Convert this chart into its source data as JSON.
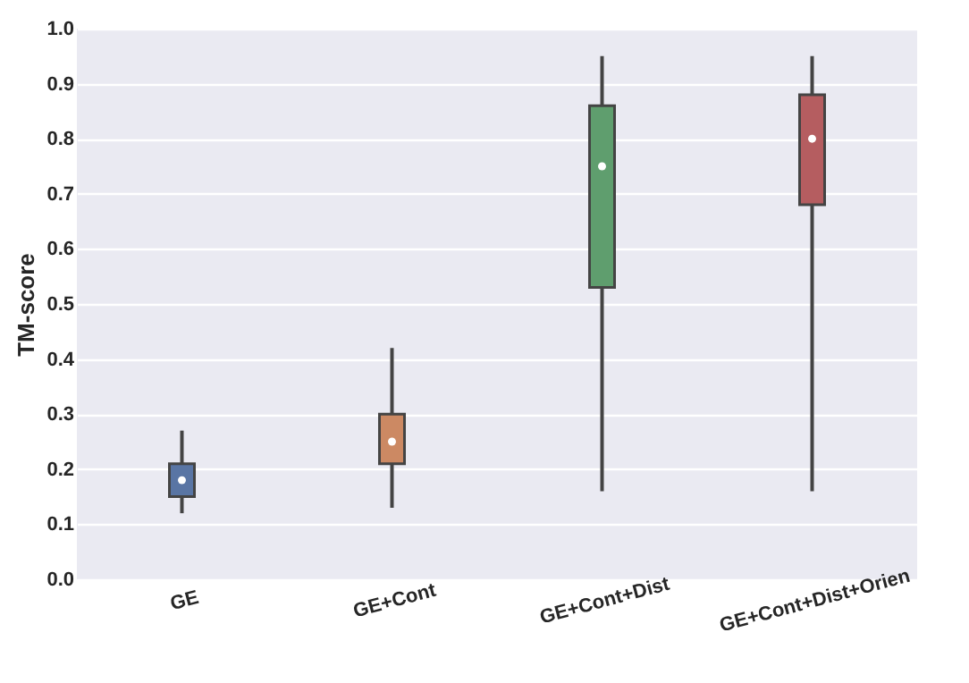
{
  "chart_data": {
    "type": "box",
    "ylabel": "TM-score",
    "categories": [
      "GE",
      "GE+Cont",
      "GE+Cont+Dist",
      "GE+Cont+Dist+Orien"
    ],
    "boxes": [
      {
        "low": 0.12,
        "q1": 0.15,
        "median": 0.18,
        "q3": 0.21,
        "high": 0.27
      },
      {
        "low": 0.13,
        "q1": 0.21,
        "median": 0.25,
        "q3": 0.3,
        "high": 0.42
      },
      {
        "low": 0.16,
        "q1": 0.53,
        "median": 0.75,
        "q3": 0.86,
        "high": 0.95
      },
      {
        "low": 0.16,
        "q1": 0.68,
        "median": 0.8,
        "q3": 0.88,
        "high": 0.95
      }
    ],
    "colors": [
      "#5975a4",
      "#cc8963",
      "#5f9e6e",
      "#b55d60"
    ],
    "ylim": [
      0,
      1
    ],
    "yticks": [
      {
        "value": 0,
        "label": "0.0"
      },
      0.1,
      0.2,
      0.3,
      0.4,
      0.5,
      0.6,
      0.7,
      0.8,
      0.9,
      {
        "value": 1,
        "label": "1.0"
      }
    ],
    "grid": "y"
  }
}
